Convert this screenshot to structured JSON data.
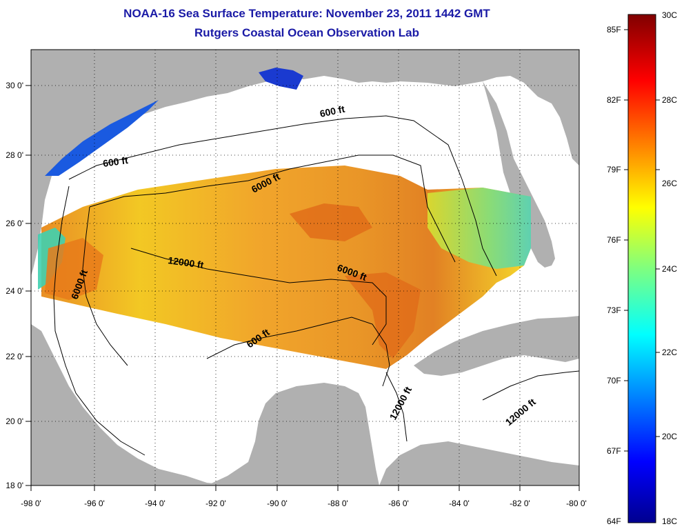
{
  "title": "NOAA-16 Sea Surface Temperature:  November 23, 2011 1442 GMT",
  "subtitle": "Rutgers Coastal Ocean Observation Lab",
  "map": {
    "lon_ticks": [
      "-98 0'",
      "-96 0'",
      "-94 0'",
      "-92 0'",
      "-90 0'",
      "-88 0'",
      "-86 0'",
      "-84 0'",
      "-82 0'",
      "-80 0'"
    ],
    "lat_ticks": [
      "30 0'",
      "28 0'",
      "26 0'",
      "24 0'",
      "22 0'",
      "20 0'",
      "18 0'"
    ],
    "lon_range": [
      -98,
      -80
    ],
    "lat_range": [
      18,
      31.3
    ],
    "land_color": "#b0b0b0",
    "contour_labels": [
      {
        "text": "600 ft"
      },
      {
        "text": "600 ft"
      },
      {
        "text": "6000 ft"
      },
      {
        "text": "12000 ft"
      },
      {
        "text": "6000 ft"
      },
      {
        "text": "6000 ft"
      },
      {
        "text": "600 ft"
      },
      {
        "text": "12000 ft"
      },
      {
        "text": "12000 ft"
      }
    ]
  },
  "colorbar": {
    "fahrenheit_labels": [
      "85F",
      "82F",
      "79F",
      "76F",
      "73F",
      "70F",
      "67F",
      "64F"
    ],
    "celsius_labels": [
      "30C",
      "28C",
      "26C",
      "24C",
      "22C",
      "20C",
      "18C"
    ],
    "range_celsius": [
      18,
      30
    ],
    "colormap": "jet"
  }
}
